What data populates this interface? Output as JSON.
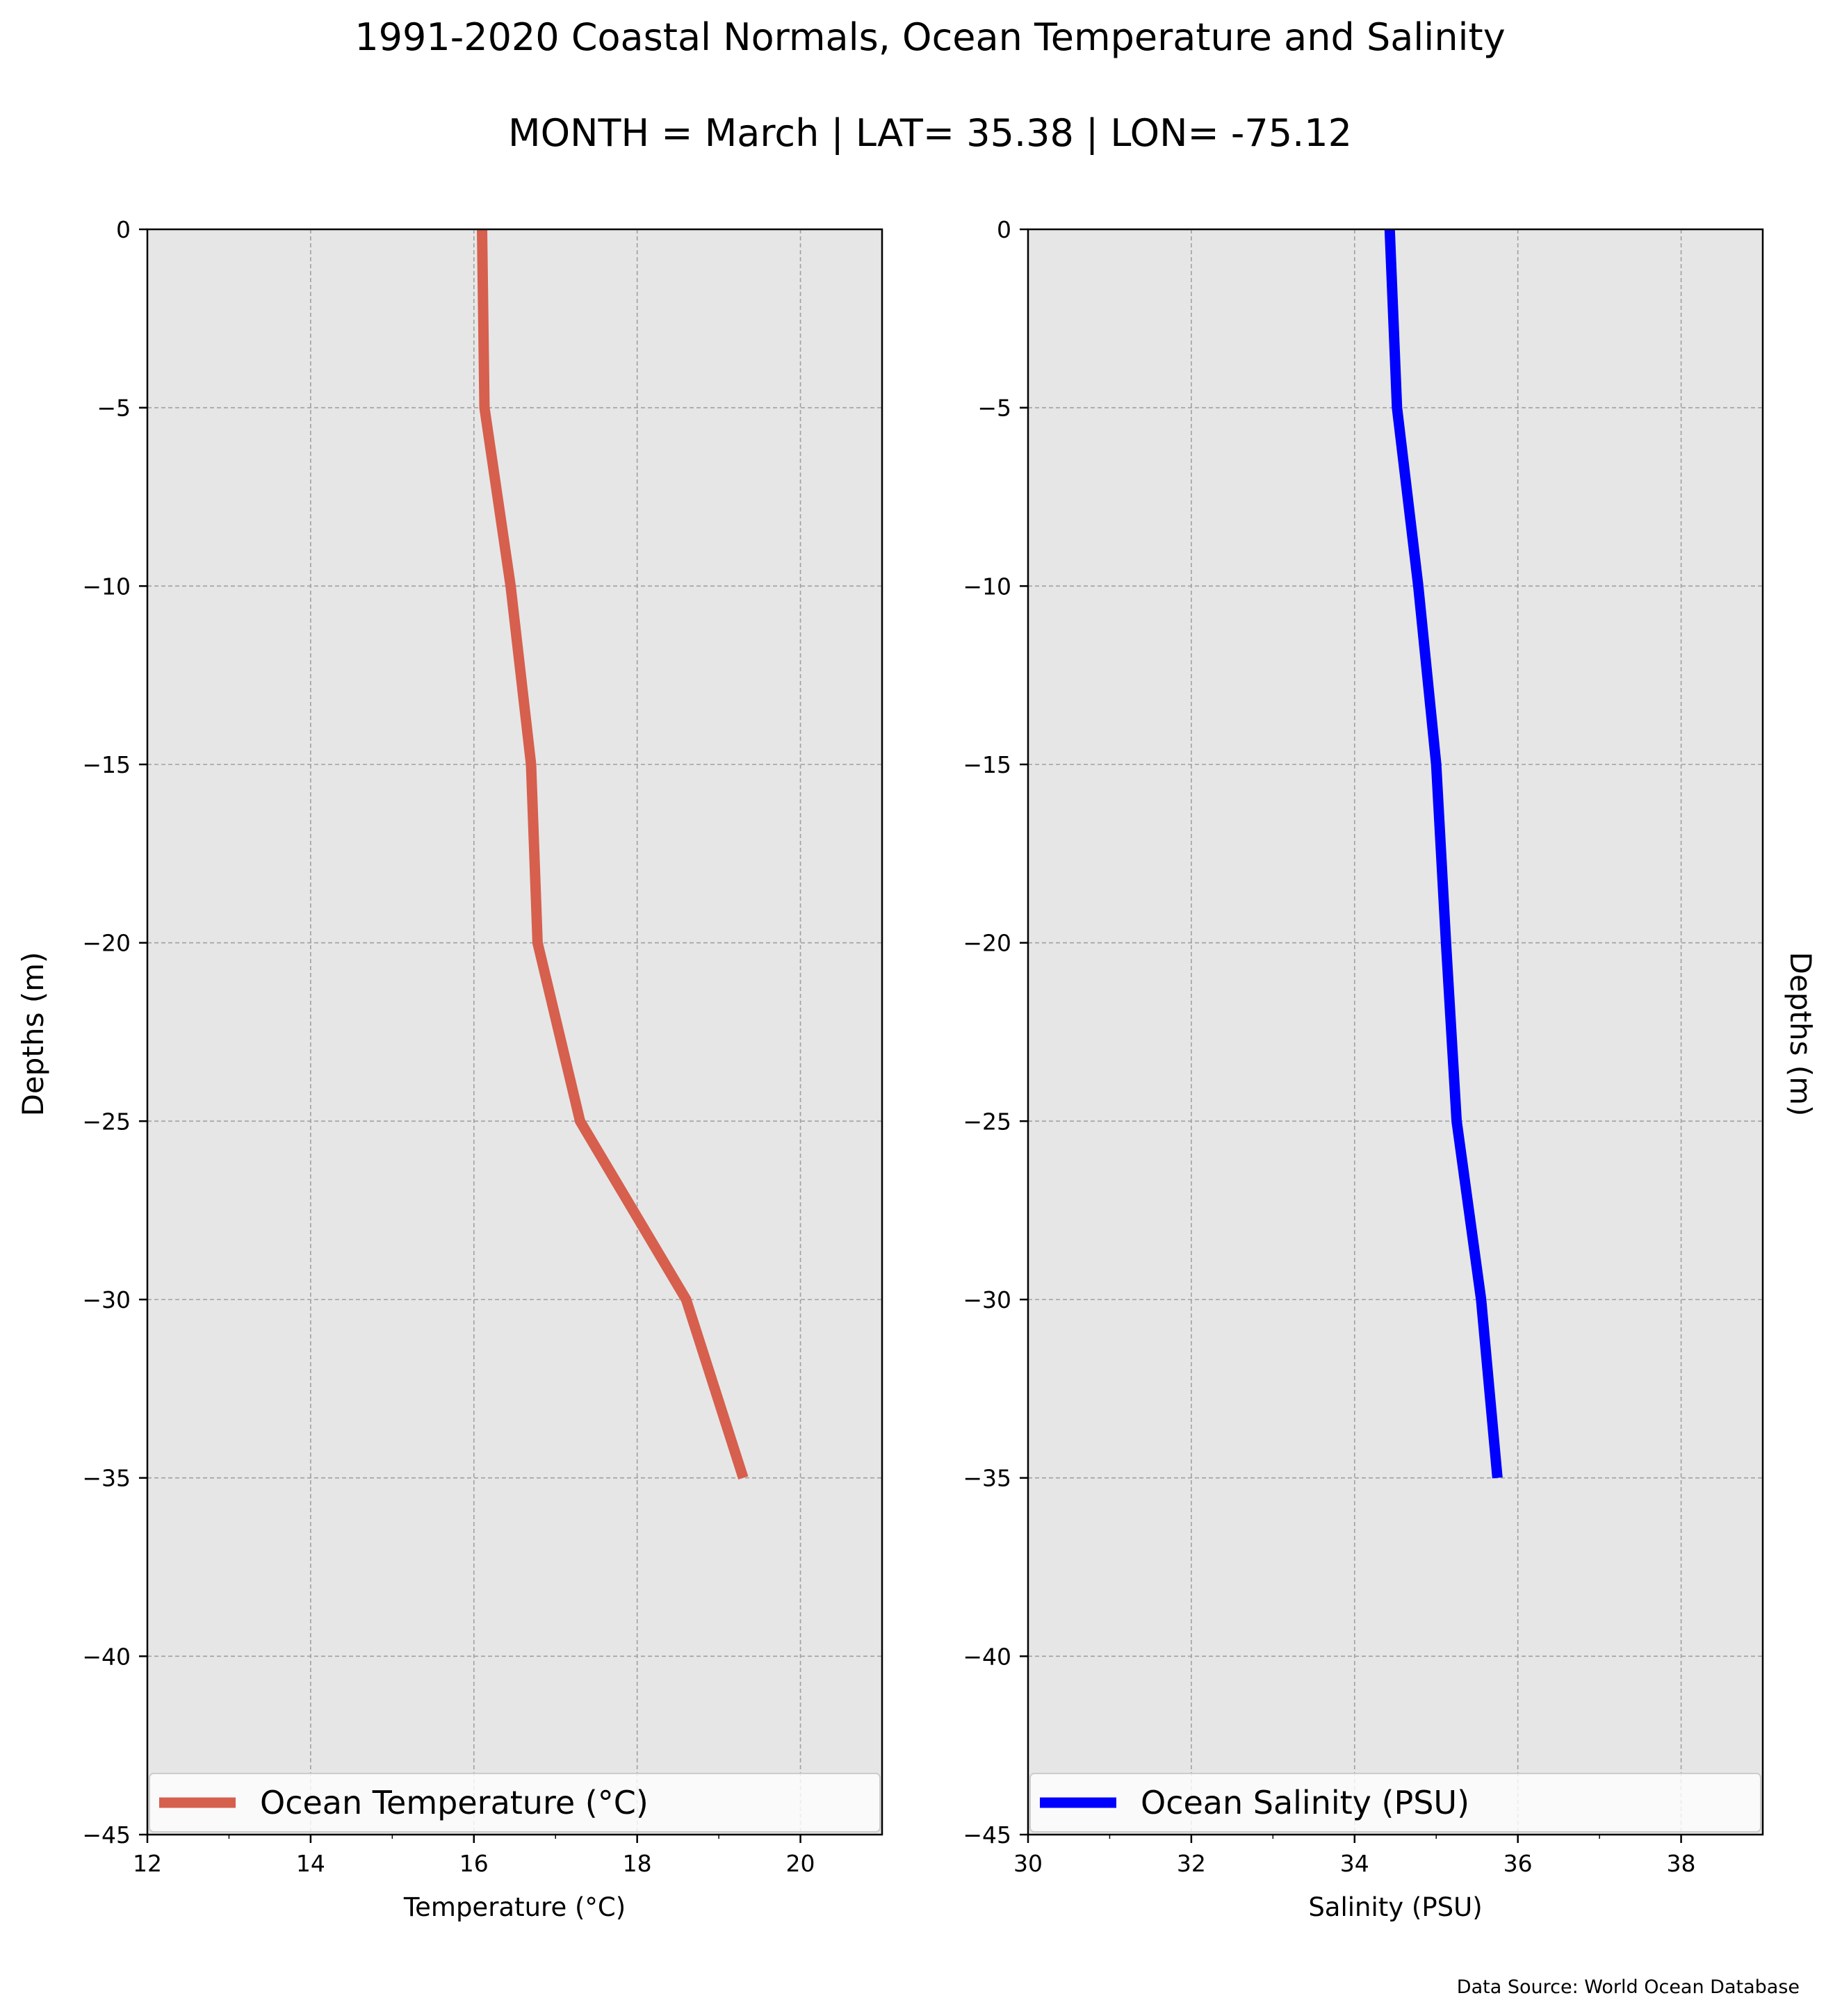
{
  "title": "1991-2020 Coastal Normals, Ocean Temperature and Salinity",
  "subtitle": "MONTH = March | LAT= 35.38 | LON= -75.12",
  "source": "Data Source: World Ocean Database",
  "colors": {
    "panel_bg": "#e6e6e6",
    "grid": "#a0a0a0",
    "temperature": "#d65f4e",
    "salinity": "#0000ff"
  },
  "chart_data": [
    {
      "type": "line",
      "xlabel": "Temperature ($^\\circ$C)",
      "xlabel_display": "Temperature (°C)",
      "ylabel": "Depths (m)",
      "xlim": [
        12,
        21
      ],
      "ylim": [
        -45,
        0
      ],
      "xticks": [
        12,
        14,
        16,
        18,
        20
      ],
      "yticks": [
        0,
        -5,
        -10,
        -15,
        -20,
        -25,
        -30,
        -35,
        -40,
        -45
      ],
      "grid": true,
      "legend_position": "bottom",
      "series": [
        {
          "name": "Ocean Temperature (°C)",
          "color": "#d65f4e",
          "points": [
            {
              "x": 16.1,
              "y": 0
            },
            {
              "x": 16.13,
              "y": -5
            },
            {
              "x": 16.45,
              "y": -10
            },
            {
              "x": 16.7,
              "y": -15
            },
            {
              "x": 16.78,
              "y": -20
            },
            {
              "x": 17.3,
              "y": -25
            },
            {
              "x": 18.6,
              "y": -30
            },
            {
              "x": 19.3,
              "y": -35
            }
          ]
        }
      ]
    },
    {
      "type": "line",
      "xlabel": "Salinity (PSU)",
      "ylabel": "Depths (m)",
      "xlim": [
        30,
        39
      ],
      "ylim": [
        -45,
        0
      ],
      "xticks": [
        30,
        32,
        34,
        36,
        38
      ],
      "yticks": [
        0,
        -5,
        -10,
        -15,
        -20,
        -25,
        -30,
        -35,
        -40,
        -45
      ],
      "grid": true,
      "legend_position": "bottom",
      "series": [
        {
          "name": "Ocean Salinity (PSU)",
          "color": "#0000ff",
          "points": [
            {
              "x": 34.43,
              "y": 0
            },
            {
              "x": 34.52,
              "y": -5
            },
            {
              "x": 34.78,
              "y": -10
            },
            {
              "x": 35.0,
              "y": -15
            },
            {
              "x": 35.12,
              "y": -20
            },
            {
              "x": 35.25,
              "y": -25
            },
            {
              "x": 35.55,
              "y": -30
            },
            {
              "x": 35.75,
              "y": -35
            }
          ]
        }
      ]
    }
  ]
}
